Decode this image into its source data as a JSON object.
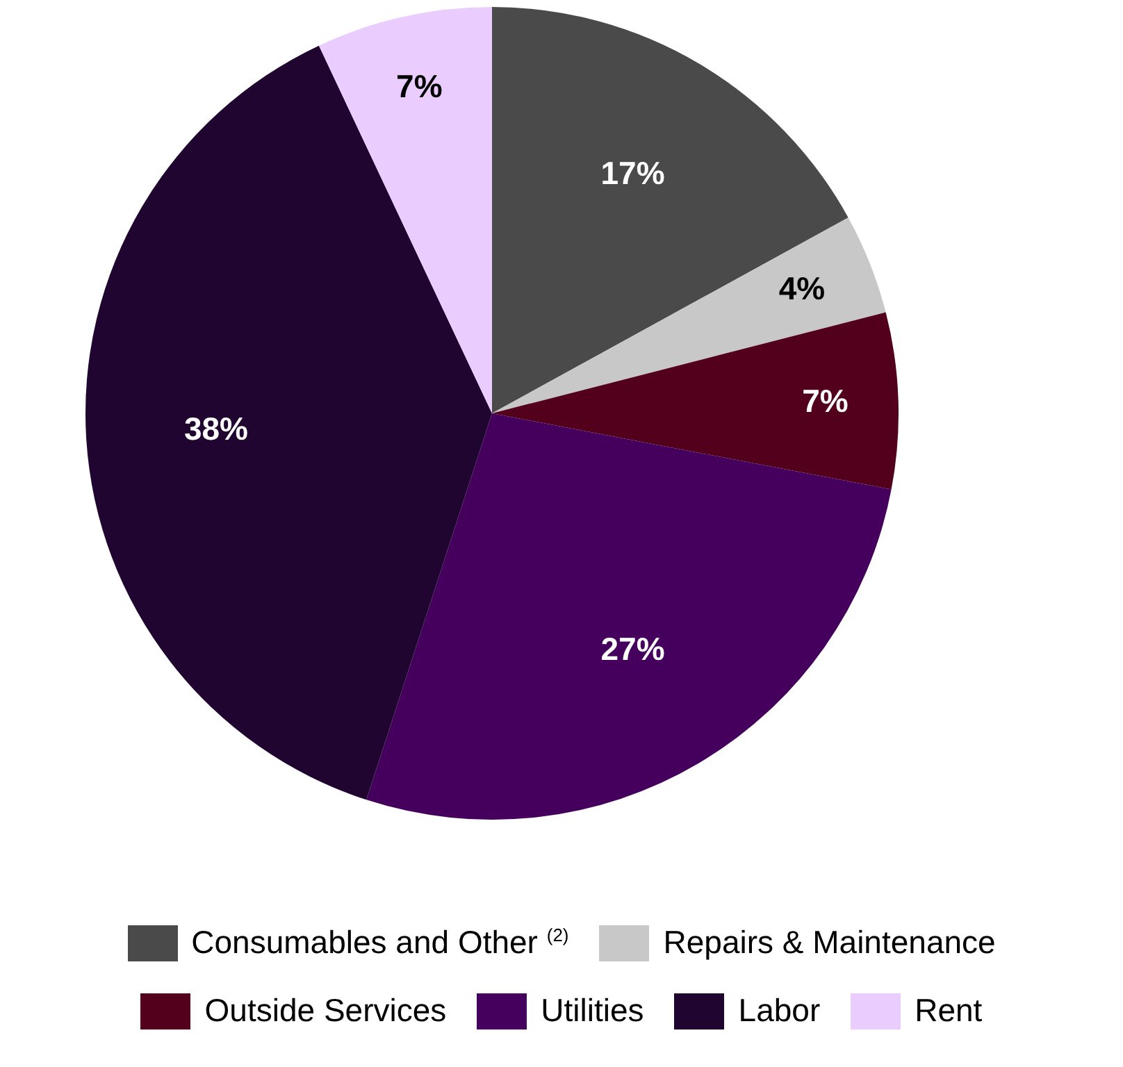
{
  "chart_data": {
    "type": "pie",
    "categories": [
      "Consumables and Other $^{(2)}$",
      "Repairs & Maintenance",
      "Outside Services",
      "Utilities",
      "Labor",
      "Rent"
    ],
    "values": [
      17,
      4,
      7,
      27,
      38,
      7
    ],
    "colors": [
      "#4a4a4a",
      "#c8c8c8",
      "#52001c",
      "#45005e",
      "#1f0530",
      "#eaccff"
    ],
    "value_labels": [
      "17%",
      "4%",
      "7%",
      "27%",
      "38%",
      "7%"
    ],
    "legend": "bottom"
  }
}
